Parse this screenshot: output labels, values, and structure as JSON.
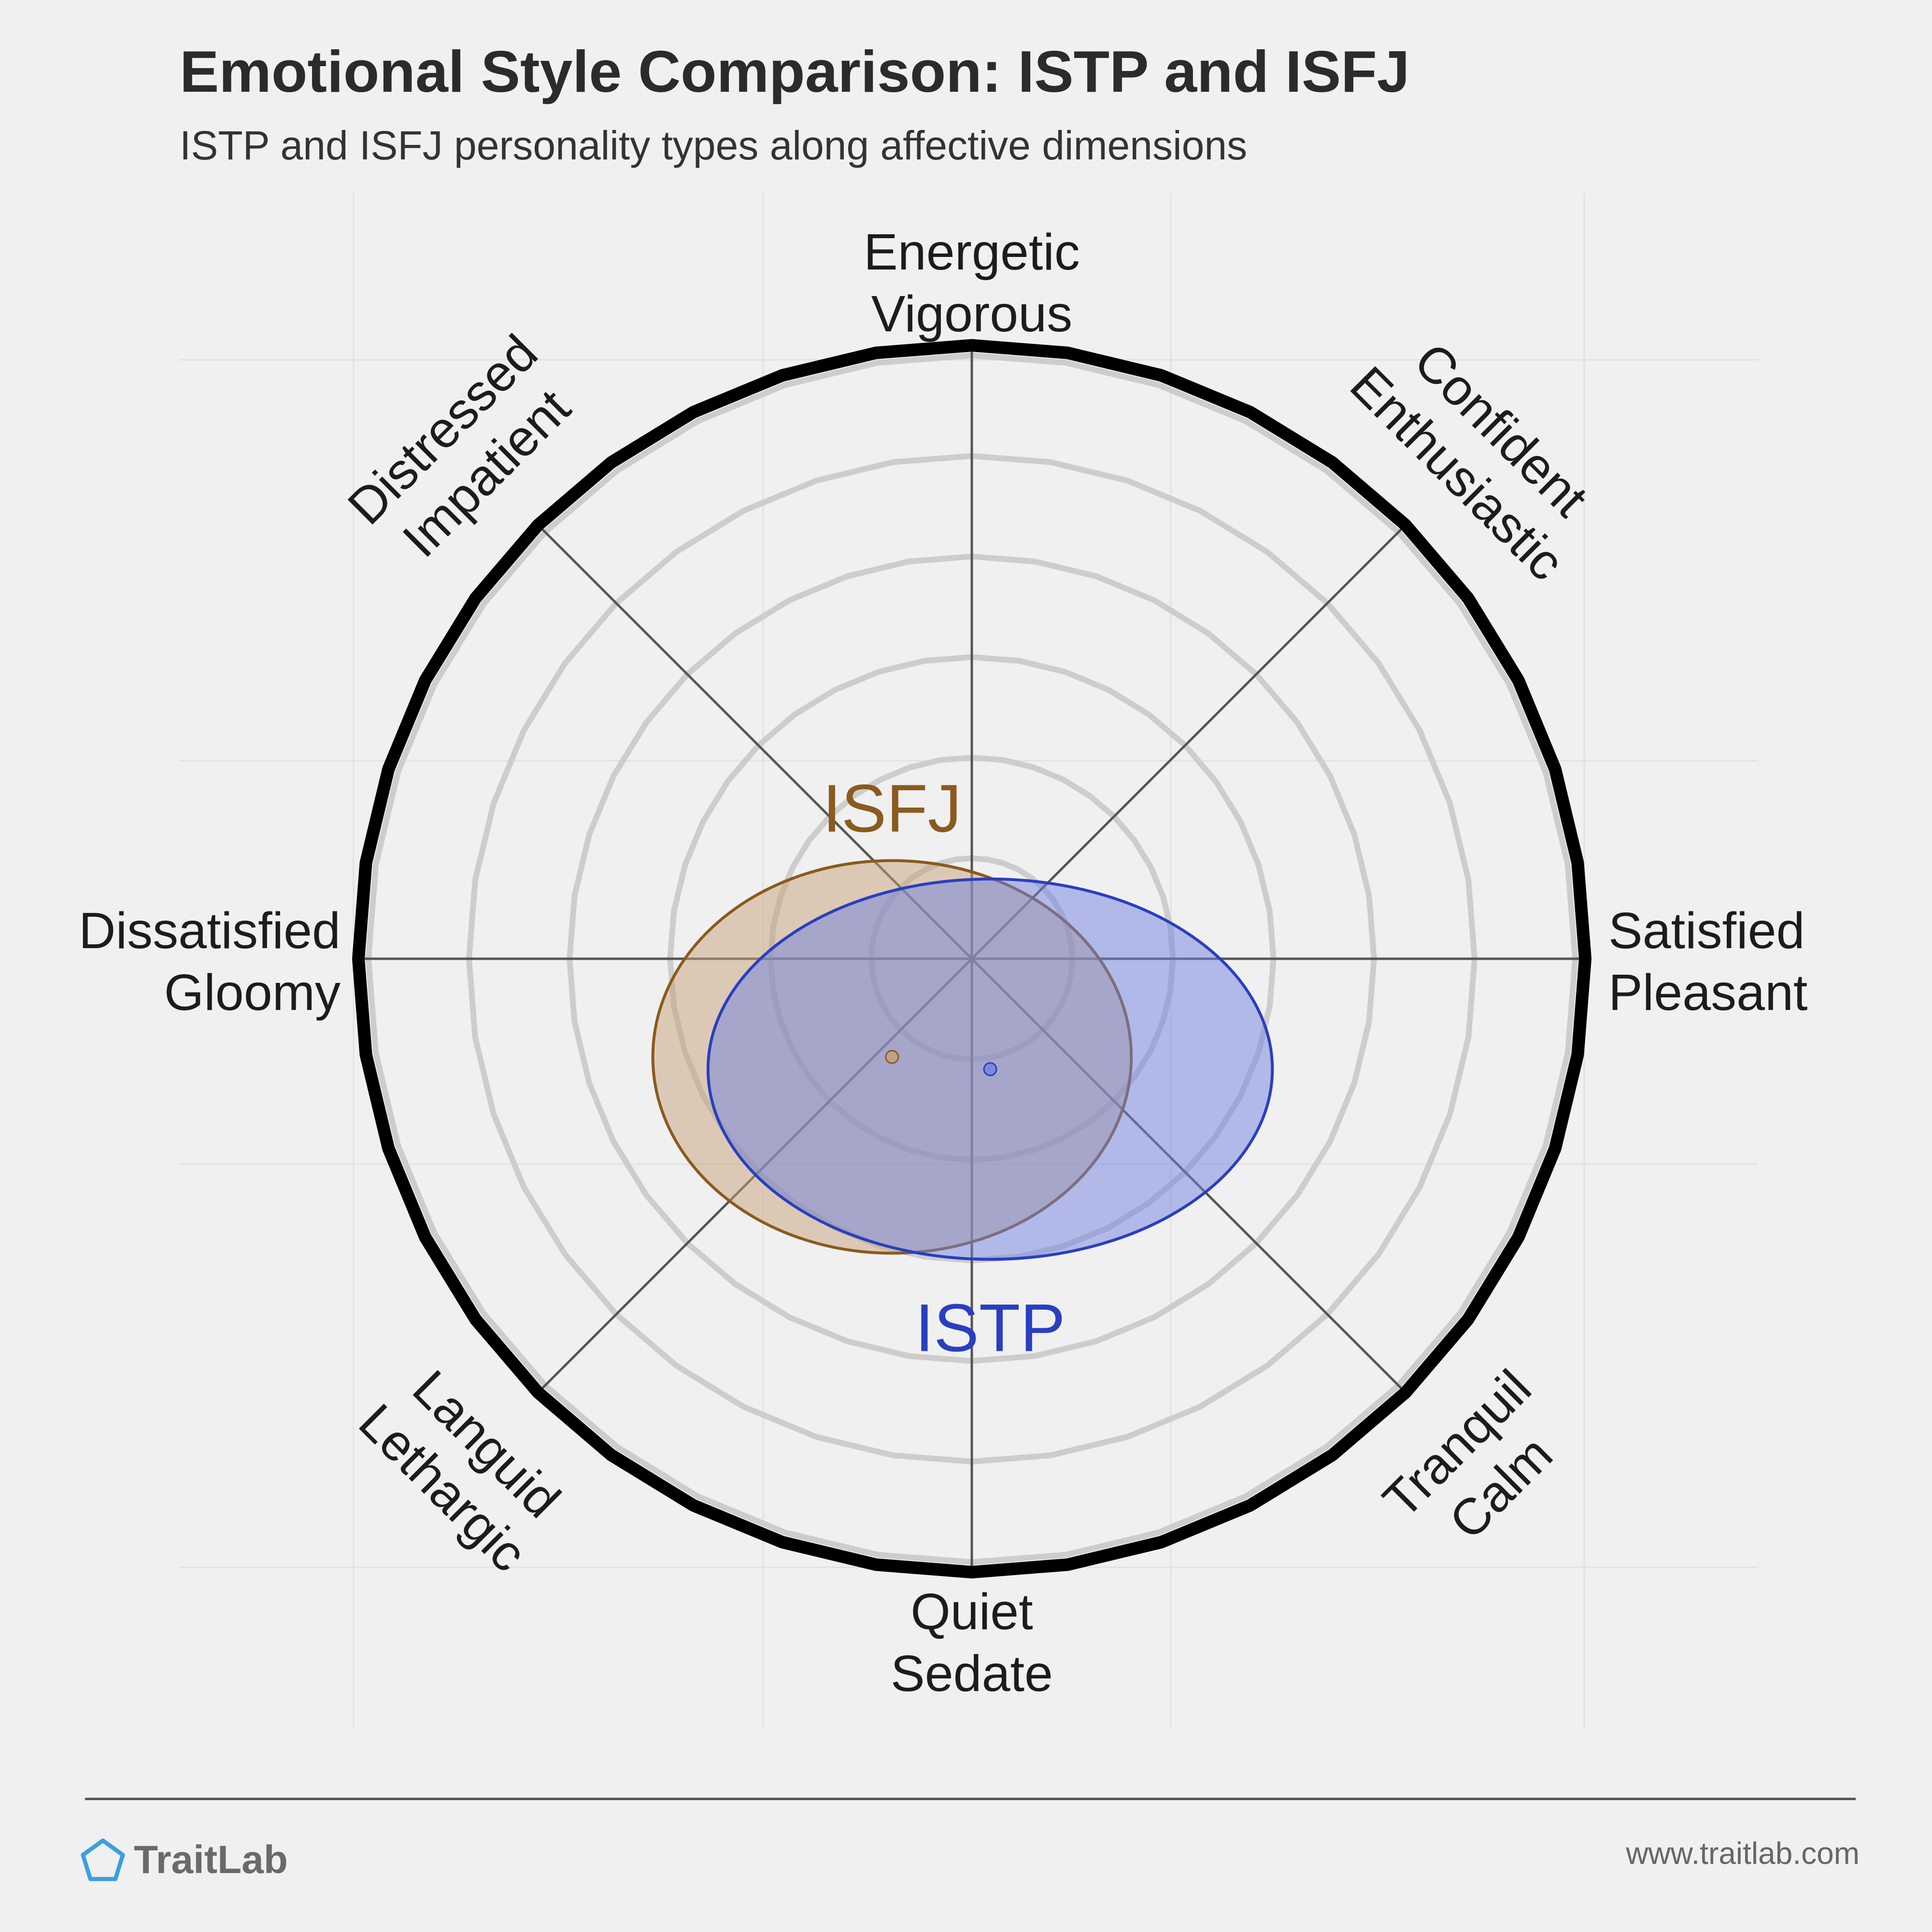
{
  "title": "Emotional Style Comparison: ISTP and ISFJ",
  "subtitle": "ISTP and ISFJ personality types along affective dimensions",
  "chart_data": {
    "type": "scatter",
    "axes": [
      {
        "direction": "top",
        "labels": [
          "Energetic",
          "Vigorous"
        ]
      },
      {
        "direction": "top-right",
        "labels": [
          "Confident",
          "Enthusiastic"
        ]
      },
      {
        "direction": "right",
        "labels": [
          "Satisfied",
          "Pleasant"
        ]
      },
      {
        "direction": "bottom-right",
        "labels": [
          "Tranquil",
          "Calm"
        ]
      },
      {
        "direction": "bottom",
        "labels": [
          "Quiet",
          "Sedate"
        ]
      },
      {
        "direction": "bottom-left",
        "labels": [
          "Languid",
          "Lethargic"
        ]
      },
      {
        "direction": "left",
        "labels": [
          "Dissatisfied",
          "Gloomy"
        ]
      },
      {
        "direction": "top-left",
        "labels": [
          "Distressed",
          "Impatient"
        ]
      }
    ],
    "rings": 6,
    "series": [
      {
        "name": "ISFJ",
        "color": "#8b5a1e",
        "fill": "#c8a27a",
        "x": -0.13,
        "y": -0.16,
        "rx": 0.39,
        "ry": 0.32
      },
      {
        "name": "ISTP",
        "color": "#2a3fbf",
        "fill": "#6f82e0",
        "x": 0.03,
        "y": -0.18,
        "rx": 0.46,
        "ry": 0.31
      }
    ]
  },
  "brand": {
    "name": "TraitLab"
  },
  "footer": {
    "url": "www.traitlab.com"
  }
}
